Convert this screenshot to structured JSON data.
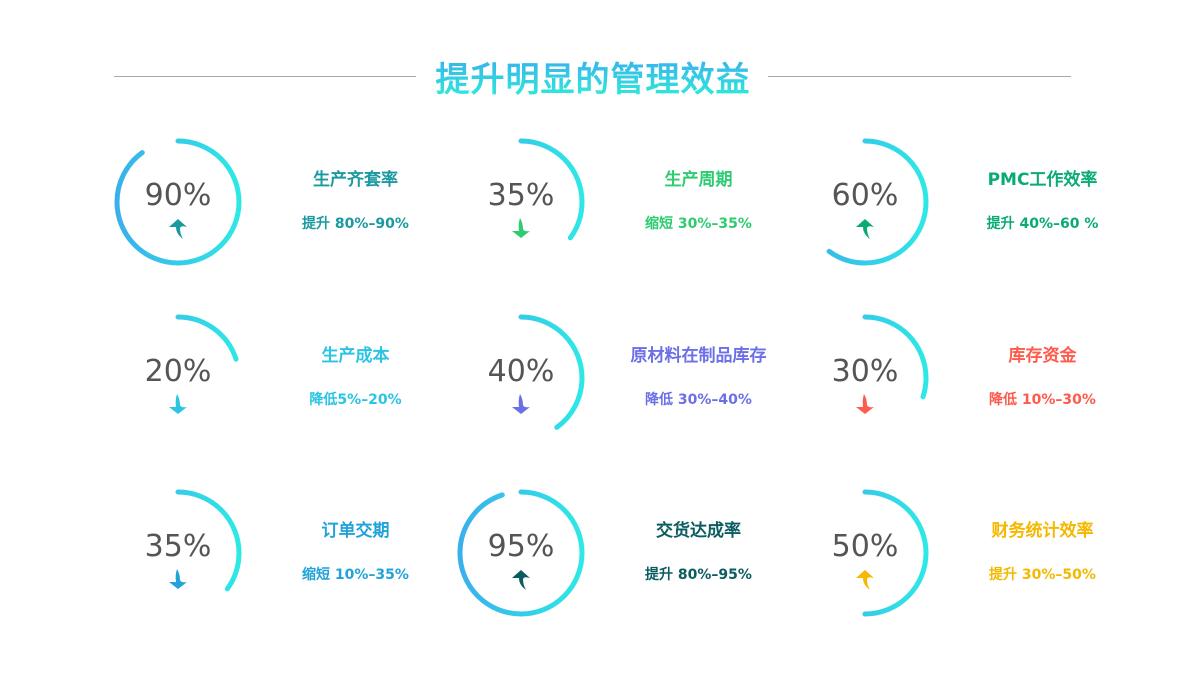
{
  "title": "提升明显的管理效益",
  "gradient": {
    "start": "#3ab0ea",
    "end": "#2ee8e6"
  },
  "items": [
    {
      "value": 90,
      "percent_label": "90%",
      "name": "生产齐套率",
      "desc": "提升 80%–90%",
      "direction": "up",
      "color": "#1a9aa0"
    },
    {
      "value": 35,
      "percent_label": "35%",
      "name": "生产周期",
      "desc": "缩短 30%–35%",
      "direction": "down",
      "color": "#2ecc71"
    },
    {
      "value": 60,
      "percent_label": "60%",
      "name": "PMC工作效率",
      "desc": "提升 40%–60 %",
      "direction": "up",
      "color": "#0aaa74"
    },
    {
      "value": 20,
      "percent_label": "20%",
      "name": "生产成本",
      "desc": "降低5%–20%",
      "direction": "down",
      "color": "#2ac4e4"
    },
    {
      "value": 40,
      "percent_label": "40%",
      "name": "原材料在制品库存",
      "desc": "降低 30%–40%",
      "direction": "down",
      "color": "#6b70e6"
    },
    {
      "value": 30,
      "percent_label": "30%",
      "name": "库存资金",
      "desc": "降低 10%–30%",
      "direction": "down",
      "color": "#ff5a4c"
    },
    {
      "value": 35,
      "percent_label": "35%",
      "name": "订单交期",
      "desc": "缩短 10%–35%",
      "direction": "down",
      "color": "#21a3d9"
    },
    {
      "value": 95,
      "percent_label": "95%",
      "name": "交货达成率",
      "desc": "提升 80%–95%",
      "direction": "up",
      "color": "#0b5c60"
    },
    {
      "value": 50,
      "percent_label": "50%",
      "name": "财务统计效率",
      "desc": "提升 30%–50%",
      "direction": "up",
      "color": "#f5b800"
    }
  ]
}
